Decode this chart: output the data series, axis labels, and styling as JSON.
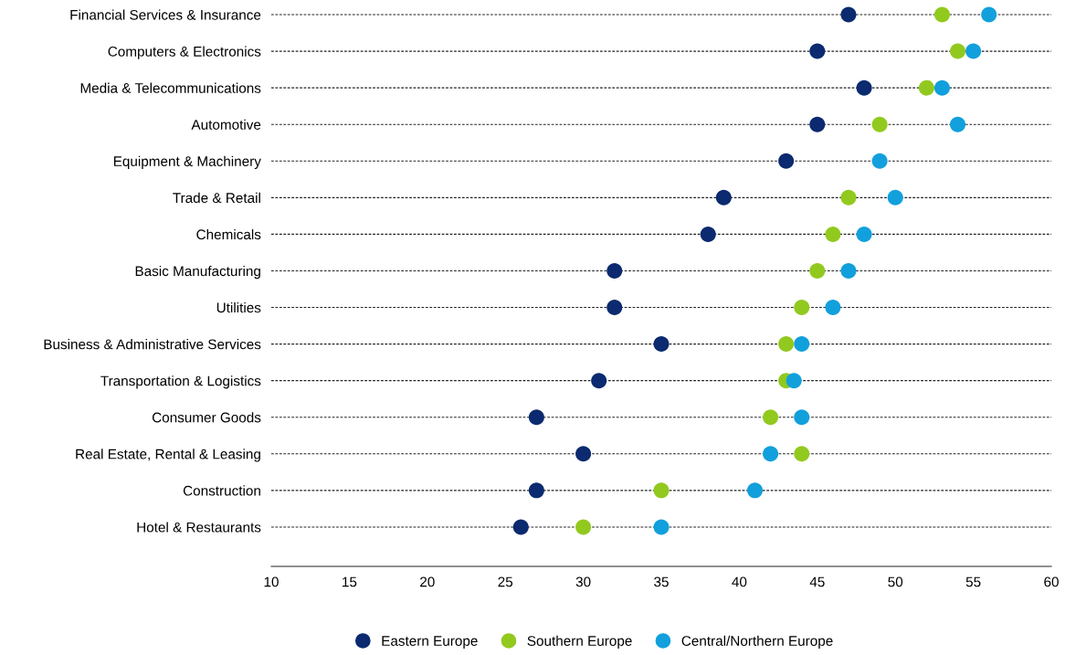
{
  "chart_data": {
    "type": "scatter",
    "orientation": "horizontal",
    "categories": [
      "Financial Services & Insurance",
      "Computers & Electronics",
      "Media & Telecommunications",
      "Automotive",
      "Equipment & Machinery",
      "Trade & Retail",
      "Chemicals",
      "Basic Manufacturing",
      "Utilities",
      "Business & Administrative Services",
      "Transportation & Logistics",
      "Consumer Goods",
      "Real Estate, Rental & Leasing",
      "Construction",
      "Hotel & Restaurants"
    ],
    "series": [
      {
        "name": "Eastern Europe",
        "color": "#0b2a6f",
        "values": [
          47,
          45,
          48,
          45,
          43,
          39,
          38,
          32,
          32,
          35,
          31,
          27,
          30,
          27,
          26
        ]
      },
      {
        "name": "Southern Europe",
        "color": "#92c91f",
        "values": [
          53,
          54,
          52,
          49,
          null,
          47,
          46,
          45,
          44,
          43,
          43,
          42,
          44,
          35,
          30
        ]
      },
      {
        "name": "Central/Northern Europe",
        "color": "#11a0dc",
        "values": [
          56,
          55,
          53,
          54,
          49,
          50,
          48,
          47,
          46,
          44,
          43.5,
          44,
          42,
          41,
          35
        ]
      }
    ],
    "xlim": [
      10,
      60
    ],
    "xticks": [
      10,
      15,
      20,
      25,
      30,
      35,
      40,
      45,
      50,
      55,
      60
    ],
    "grid": "y",
    "legend": "bottom",
    "marker": "circle"
  }
}
